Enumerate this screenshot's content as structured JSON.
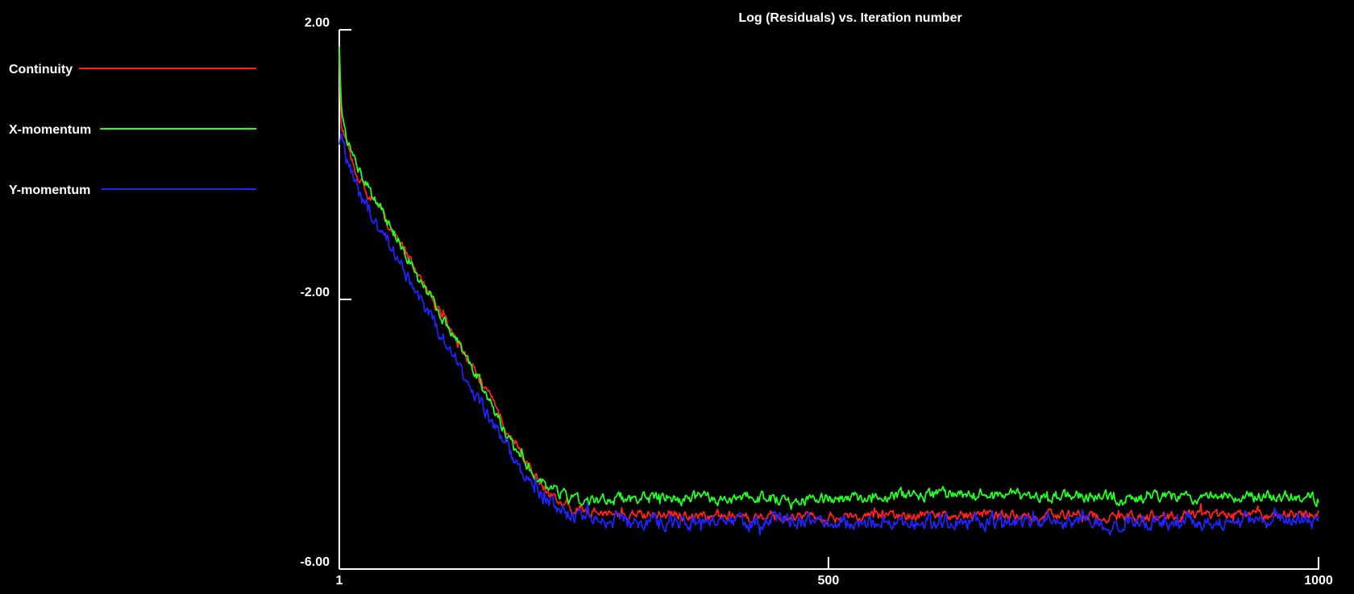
{
  "chart_data": {
    "type": "line",
    "title": "Log (Residuals) vs. Iteration number",
    "xlabel": "",
    "ylabel": "",
    "xlim": [
      1,
      1000
    ],
    "ylim": [
      -6.0,
      2.0
    ],
    "x_ticks": [
      1,
      500,
      1000
    ],
    "x_tick_labels": [
      "1",
      "500",
      "1000"
    ],
    "y_ticks": [
      2.0,
      -2.0,
      -6.0
    ],
    "y_tick_labels": [
      "2.00",
      "-2.00",
      "-6.00"
    ],
    "grid": false,
    "legend_position": "left",
    "x_anchors": [
      1,
      3,
      8,
      20,
      40,
      60,
      80,
      100,
      120,
      140,
      160,
      180,
      200,
      215,
      230,
      240,
      260,
      300,
      400,
      500,
      600,
      700,
      800,
      900,
      1000
    ],
    "series": [
      {
        "name": "Continuity",
        "color": "#ff2020",
        "noise": 0.06,
        "y_anchors": [
          1.6,
          0.6,
          0.3,
          -0.2,
          -0.6,
          -1.1,
          -1.6,
          -2.1,
          -2.6,
          -3.1,
          -3.6,
          -4.1,
          -4.6,
          -4.9,
          -5.05,
          -5.1,
          -5.15,
          -5.2,
          -5.2,
          -5.25,
          -5.2,
          -5.2,
          -5.22,
          -5.2,
          -5.2
        ]
      },
      {
        "name": "X-momentum",
        "color": "#22ff22",
        "noise": 0.07,
        "y_anchors": [
          1.8,
          0.9,
          0.4,
          -0.1,
          -0.6,
          -1.1,
          -1.6,
          -2.1,
          -2.6,
          -3.1,
          -3.7,
          -4.2,
          -4.6,
          -4.8,
          -4.9,
          -4.95,
          -4.95,
          -4.95,
          -4.95,
          -4.95,
          -4.9,
          -4.9,
          -4.95,
          -4.92,
          -4.95
        ]
      },
      {
        "name": "Y-momentum",
        "color": "#2222ff",
        "noise": 0.09,
        "y_anchors": [
          0.3,
          0.5,
          0.1,
          -0.4,
          -0.9,
          -1.4,
          -1.9,
          -2.4,
          -2.9,
          -3.4,
          -3.9,
          -4.4,
          -4.8,
          -5.0,
          -5.15,
          -5.2,
          -5.25,
          -5.3,
          -5.3,
          -5.3,
          -5.3,
          -5.3,
          -5.3,
          -5.3,
          -5.28
        ]
      }
    ]
  }
}
